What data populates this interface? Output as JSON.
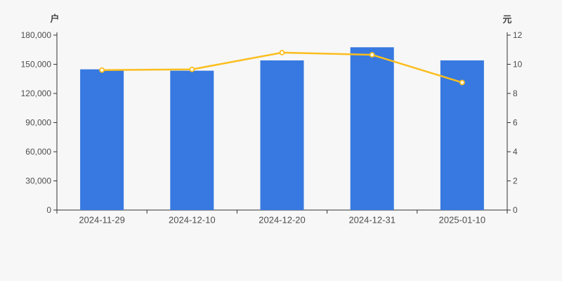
{
  "chart_data": {
    "type": "bar",
    "subtype": "bar+line dual axis",
    "title": "",
    "categories": [
      "2024-11-29",
      "2024-12-10",
      "2024-12-20",
      "2024-12-31",
      "2025-01-10"
    ],
    "series": [
      {
        "name": "户",
        "type": "bar",
        "axis": "left",
        "color": "#3779e0",
        "values": [
          144800,
          143400,
          154000,
          167500,
          154000
        ]
      },
      {
        "name": "元",
        "type": "line",
        "axis": "right",
        "color": "#fcbe1e",
        "marker_fill": "#ffffff",
        "values": [
          9.6,
          9.65,
          10.8,
          10.65,
          8.75
        ]
      }
    ],
    "left_axis": {
      "label": "户",
      "min": 0,
      "max": 180000,
      "step": 30000,
      "tick_labels": [
        "0",
        "30,000",
        "60,000",
        "90,000",
        "120,000",
        "150,000",
        "180,000"
      ]
    },
    "right_axis": {
      "label": "元",
      "min": 0,
      "max": 12,
      "step": 2,
      "tick_labels": [
        "0",
        "2",
        "4",
        "6",
        "8",
        "10",
        "12"
      ]
    },
    "grid": false,
    "legend": null,
    "background": "#f7f7f7",
    "axis_line_color": "#333333",
    "tick_text_color": "#4d4d4d"
  }
}
